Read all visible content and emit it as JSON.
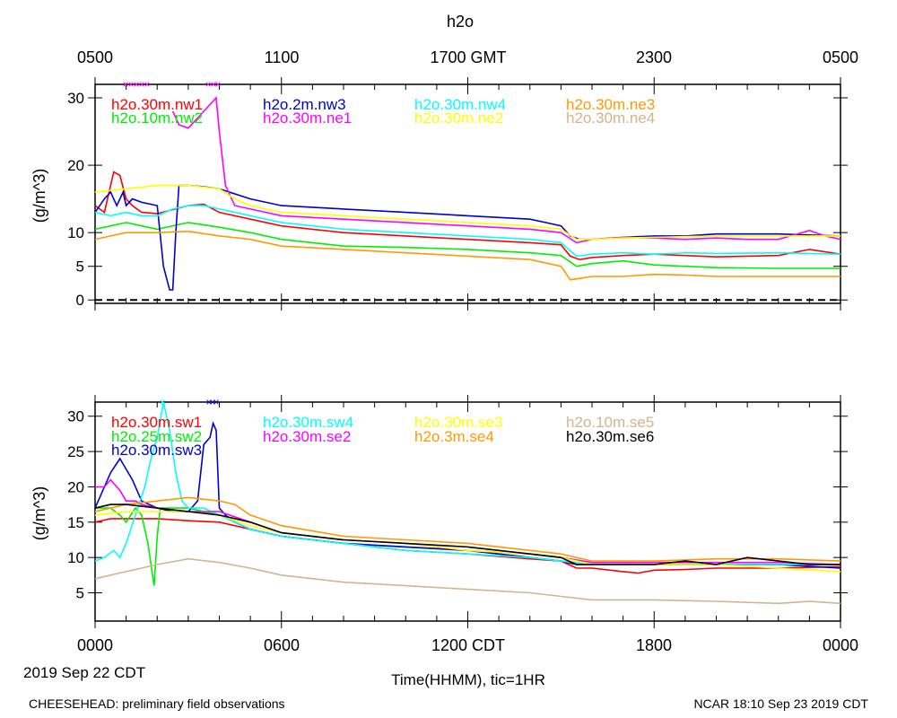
{
  "title": "h2o",
  "top_axis": {
    "ticks": [
      "0500",
      "1100",
      "1700 GMT",
      "2300",
      "0500"
    ]
  },
  "bottom_axis": {
    "ticks": [
      "0000",
      "0600",
      "1200 CDT",
      "1800",
      "0000"
    ],
    "date_label": "2019 Sep 22 CDT",
    "xlabel": "Time(HHMM), tic=1HR"
  },
  "footer": {
    "left": "CHEESEHEAD: preliminary field observations",
    "right": "NCAR 18:10 Sep 23 2019 CDT"
  },
  "chart_data": [
    {
      "type": "line",
      "title": "h2o",
      "xlabel": "Time(HHMM), tic=1HR",
      "ylabel": "(g/m^3)",
      "xlim": [
        0,
        24
      ],
      "ylim": [
        -0.5,
        32
      ],
      "yticks": [
        0,
        5,
        10,
        20,
        30
      ],
      "reference_line": {
        "y": 0,
        "style": "dashed"
      },
      "series": [
        {
          "name": "h2o.30m.nw1",
          "color": "#ff0000",
          "x": [
            0,
            0.3,
            0.6,
            0.8,
            1.0,
            1.2,
            1.5,
            2,
            3,
            3.5,
            4,
            5,
            6,
            8,
            10,
            12,
            14,
            15,
            15.3,
            15.6,
            16,
            17,
            18,
            19,
            20,
            21,
            22,
            23,
            24
          ],
          "y": [
            14,
            13,
            19,
            18.5,
            15,
            14,
            13,
            12.8,
            14,
            14.2,
            13,
            12,
            11,
            10,
            9.5,
            9,
            8.5,
            8.2,
            6.5,
            6.0,
            6.3,
            6.6,
            6.8,
            6.6,
            6.4,
            6.5,
            6.6,
            7.5,
            6.8
          ]
        },
        {
          "name": "h2o.10m.nw2",
          "color": "#00ee00",
          "x": [
            0,
            0.5,
            1,
            1.5,
            2,
            3,
            4,
            5,
            6,
            8,
            10,
            12,
            14,
            15,
            15.5,
            16,
            17,
            18,
            19,
            20,
            22,
            24
          ],
          "y": [
            10.5,
            11,
            11.5,
            11,
            10.5,
            11.5,
            10.8,
            10,
            9,
            8,
            7.8,
            7.5,
            7,
            6.6,
            5,
            5.4,
            5.8,
            5.2,
            5.0,
            4.8,
            4.7,
            4.7
          ]
        },
        {
          "name": "h2o.2m.nw3",
          "color": "#0000cc",
          "x": [
            0,
            0.3,
            0.5,
            0.7,
            0.9,
            1.0,
            1.2,
            1.5,
            2.0,
            2.2,
            2.4,
            2.5,
            2.6,
            2.7,
            2.8,
            3.0,
            3.5,
            4,
            5,
            6,
            8,
            10,
            12,
            14,
            14.5,
            15,
            15.3,
            15.6,
            16,
            17,
            18,
            19,
            20,
            22,
            24
          ],
          "y": [
            13,
            15,
            16,
            14,
            16,
            14,
            15,
            14.5,
            14,
            5,
            1.5,
            1.5,
            10,
            17,
            17,
            17,
            16.8,
            16.5,
            15,
            14,
            13.5,
            13,
            12.5,
            12,
            11.5,
            11,
            9.5,
            9,
            9,
            9.3,
            9.5,
            9.5,
            9.8,
            9.8,
            9.5
          ]
        },
        {
          "name": "h2o.30m.ne1",
          "color": "#ff00ff",
          "x": [
            2.5,
            2.7,
            3,
            3.2,
            3.5,
            3.7,
            3.9,
            4.0,
            4.2,
            4.5,
            5,
            6,
            8,
            10,
            12,
            14,
            15,
            15.5,
            16,
            17,
            18,
            19,
            20,
            21,
            22,
            23,
            23.5,
            24
          ],
          "y": [
            28,
            26,
            25.5,
            26.5,
            28,
            29,
            30,
            25,
            17,
            14,
            13.5,
            12.5,
            12,
            11.5,
            11,
            10.5,
            10,
            8.5,
            9,
            9.3,
            9.2,
            9,
            9.2,
            9,
            9,
            10.3,
            9.5,
            9
          ]
        },
        {
          "name": "h2o.30m.nw4",
          "color": "#00ffff",
          "x": [
            0,
            0.5,
            1,
            1.5,
            2,
            2.5,
            3,
            3.5,
            4,
            5,
            6,
            8,
            10,
            12,
            14,
            15,
            15.5,
            16,
            17,
            18,
            19,
            20,
            22,
            24
          ],
          "y": [
            13,
            12.5,
            13,
            12.5,
            12.5,
            13.5,
            14,
            14,
            13.5,
            12.5,
            11.5,
            10.5,
            10,
            9.5,
            9,
            8.5,
            6.5,
            6.8,
            7,
            6.8,
            7,
            6.9,
            7,
            6.8
          ]
        },
        {
          "name": "h2o.30m.ne2",
          "color": "#ffff00",
          "x": [
            0,
            1,
            2,
            3,
            4,
            4.5,
            5,
            6,
            8,
            10,
            12,
            14,
            15,
            15.5,
            16,
            17,
            18,
            20,
            22,
            24
          ],
          "y": [
            16,
            16.5,
            17,
            17,
            16.5,
            15,
            14,
            13,
            12.5,
            12,
            11.5,
            11,
            10.5,
            9,
            9,
            9.2,
            9.3,
            9.5,
            9.5,
            9.5
          ]
        },
        {
          "name": "h2o.30m.ne3",
          "color": "#ff9900",
          "x": [
            0,
            0.5,
            1,
            2,
            3,
            4,
            5,
            6,
            8,
            10,
            12,
            14,
            15,
            15.3,
            15.6,
            16,
            17,
            18,
            19,
            20,
            22,
            24
          ],
          "y": [
            9,
            9.5,
            10,
            10,
            10.2,
            9.5,
            9,
            8,
            7.5,
            7,
            6.5,
            6,
            5,
            3,
            3.2,
            3.5,
            3.5,
            3.8,
            3.7,
            3.5,
            3.5,
            3.5
          ]
        },
        {
          "name": "h2o.30m.ne4",
          "color": "#d2b48c",
          "x": [],
          "y": []
        }
      ]
    },
    {
      "type": "line",
      "xlabel": "Time(HHMM), tic=1HR",
      "ylabel": "(g/m^3)",
      "xlim": [
        0,
        24
      ],
      "ylim": [
        1,
        32
      ],
      "yticks": [
        5,
        10,
        15,
        20,
        25,
        30
      ],
      "series": [
        {
          "name": "h2o.30m.sw1",
          "color": "#ff0000",
          "x": [
            0,
            0.5,
            1,
            2,
            3,
            4,
            5,
            6,
            8,
            10,
            12,
            14,
            15,
            15.5,
            16,
            17,
            17.5,
            18,
            19,
            20,
            22,
            24
          ],
          "y": [
            15,
            15.5,
            15.5,
            15.5,
            15.2,
            15,
            14,
            13,
            12,
            11,
            10.5,
            9.8,
            9.5,
            8.5,
            8.5,
            8,
            7.8,
            8.2,
            8.3,
            8.5,
            8.5,
            8.7
          ]
        },
        {
          "name": "h2o.25m.sw2",
          "color": "#00ee00",
          "x": [
            0,
            0.5,
            0.8,
            1,
            1.3,
            1.5,
            1.7,
            1.9,
            2.0,
            2.1,
            2.3,
            2.5,
            3,
            4,
            5,
            6,
            8,
            10,
            12,
            14,
            15,
            16,
            18,
            20,
            22,
            24
          ],
          "y": [
            17,
            17,
            16,
            15,
            17,
            16,
            12,
            6,
            13,
            17,
            17,
            17,
            17,
            16,
            14,
            13,
            12,
            11.5,
            11,
            10,
            9.5,
            9,
            9,
            9,
            9,
            9
          ]
        },
        {
          "name": "h2o.30m.sw3",
          "color": "#0000cc",
          "x": [
            0,
            0.5,
            0.8,
            1.2,
            1.5,
            2,
            2.5,
            3.0,
            3.3,
            3.5,
            3.7,
            3.8,
            3.9,
            4.0,
            4.2,
            4.5,
            5,
            6,
            8,
            10,
            12,
            14,
            15,
            15.5,
            16,
            17,
            18,
            20,
            22,
            24
          ],
          "y": [
            17,
            22,
            24,
            21,
            18,
            17,
            16.5,
            16.5,
            18,
            26,
            27,
            29,
            28,
            17,
            16,
            15,
            14,
            13,
            12,
            11.5,
            11,
            10,
            9.5,
            9,
            9,
            9,
            9,
            9,
            9,
            8.5
          ]
        },
        {
          "name": "h2o.30m.sw4",
          "color": "#00ffff",
          "x": [
            0,
            0.3,
            0.6,
            0.8,
            1,
            1.3,
            1.6,
            1.8,
            2,
            2.2,
            2.4,
            2.6,
            2.8,
            3,
            3.5,
            4,
            5,
            6,
            8,
            10,
            12,
            14,
            15,
            16,
            18,
            20,
            22,
            24
          ],
          "y": [
            9.5,
            10,
            11,
            10,
            12,
            16,
            20,
            24,
            27,
            32,
            28,
            22,
            18,
            17,
            17,
            16,
            14,
            13,
            12,
            11,
            10.5,
            10,
            9.5,
            9,
            9,
            9,
            9,
            9
          ]
        },
        {
          "name": "h2o.30m.se2",
          "color": "#ff00ff",
          "x": [
            0,
            0.3,
            0.5,
            0.8,
            1,
            1.3,
            1.5,
            2,
            3,
            4,
            5,
            6,
            8,
            10,
            12,
            14,
            15,
            16,
            18,
            20,
            22,
            24
          ],
          "y": [
            20,
            20,
            21,
            19.5,
            18,
            18,
            17.5,
            17,
            16.5,
            16.5,
            15,
            13.5,
            12.5,
            12,
            11,
            10.5,
            10,
            9.3,
            9.3,
            9.3,
            9.3,
            9
          ]
        },
        {
          "name": "h2o.30m.se3",
          "color": "#ffff00",
          "x": [
            0,
            1,
            2,
            3,
            4,
            5,
            6,
            8,
            10,
            12,
            14,
            15,
            16,
            18,
            20,
            22,
            24
          ],
          "y": [
            16,
            16.5,
            16.5,
            16.5,
            16,
            14.5,
            13.5,
            12.5,
            12,
            11,
            10.5,
            10,
            9,
            9,
            9,
            8.5,
            8
          ]
        },
        {
          "name": "h2o.3m.se4",
          "color": "#ff9900",
          "x": [
            0,
            0.5,
            1,
            2,
            3,
            4,
            4.5,
            5,
            6,
            8,
            10,
            12,
            14,
            15,
            16,
            17,
            18,
            20,
            22,
            24
          ],
          "y": [
            16.5,
            17,
            17.5,
            18,
            18.5,
            18,
            17.5,
            16,
            14.5,
            13,
            12.5,
            12,
            11,
            10.5,
            9.5,
            9.5,
            9.5,
            9.8,
            9.8,
            9.5
          ]
        },
        {
          "name": "h2o.10m.se5",
          "color": "#d2b48c",
          "x": [
            0,
            0.5,
            1,
            2,
            3,
            4,
            5,
            6,
            8,
            10,
            12,
            14,
            15,
            16,
            18,
            20,
            22,
            23,
            24
          ],
          "y": [
            7,
            7.5,
            8,
            9,
            9.8,
            9.3,
            8.5,
            7.5,
            6.5,
            6,
            5.5,
            5,
            4.5,
            4,
            4,
            3.8,
            3.5,
            3.8,
            3.5
          ]
        },
        {
          "name": "h2o.30m.se6",
          "color": "#000000",
          "x": [
            0,
            0.5,
            1,
            2,
            3,
            4,
            5,
            6,
            8,
            10,
            12,
            14,
            15,
            15.5,
            16,
            17,
            18,
            19,
            20,
            21,
            22,
            23,
            24
          ],
          "y": [
            17,
            17.5,
            17.5,
            17,
            16.5,
            16,
            15,
            13.5,
            12.5,
            12,
            11.5,
            10.5,
            10,
            9,
            9,
            9,
            9,
            9.5,
            9,
            10,
            9.5,
            9,
            9
          ]
        }
      ]
    }
  ]
}
